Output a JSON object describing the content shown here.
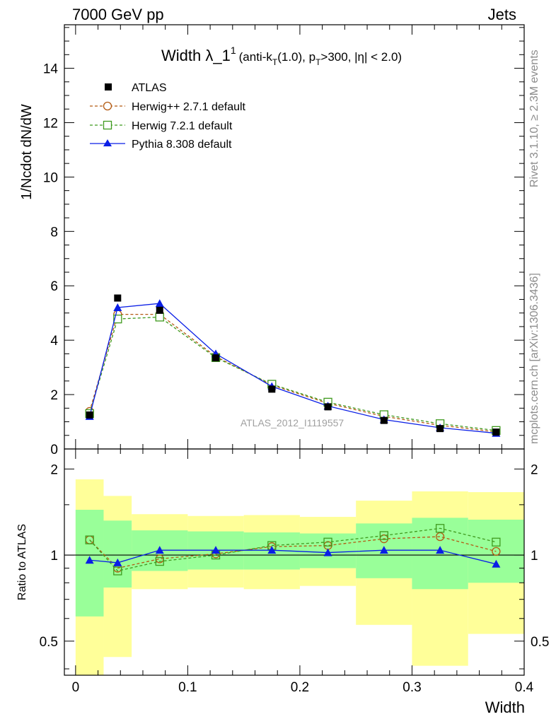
{
  "header": {
    "left": "7000 GeV pp",
    "right": "Jets"
  },
  "side_labels": {
    "rivet": "Rivet 3.1.10, ≥ 2.3M events",
    "mcplots": "mcplots.cern.ch [arXiv:1306.3436]"
  },
  "watermark": "ATLAS_2012_I1119557",
  "colors": {
    "atlas": "#000000",
    "herwigpp": "#b35a12",
    "herwig7": "#3f9a1e",
    "pythia": "#0a1ee6",
    "band_inner": "#99ff99",
    "band_outer": "#ffff99"
  },
  "chart_data": [
    {
      "type": "line",
      "title": "Width λ_1¹ (anti-k_T(1.0), p_T>300, |η| < 2.0)",
      "title_main": "Width λ_1",
      "title_sup": "1",
      "title_sub_text": "(anti-k",
      "title_sub_T": "T",
      "title_sub_rest1": "(1.0), p",
      "title_sub_T2": "T",
      "title_sub_rest2": ">300, |η| < 2.0)",
      "ylabel": "1/Ncdot dN/dW",
      "xlabel": "",
      "xlim": [
        -0.01,
        0.4
      ],
      "ylim": [
        0,
        15.6
      ],
      "yticks": [
        0,
        2,
        4,
        6,
        8,
        10,
        12,
        14
      ],
      "ytick_labels": [
        "0",
        "2",
        "4",
        "6",
        "8",
        "10",
        "12",
        "14"
      ],
      "legend_position": "top-left",
      "x": [
        0.0125,
        0.0375,
        0.075,
        0.125,
        0.175,
        0.225,
        0.275,
        0.325,
        0.375
      ],
      "series": [
        {
          "name": "ATLAS",
          "marker": "square-filled",
          "values": [
            1.25,
            5.55,
            5.1,
            3.35,
            2.2,
            1.55,
            1.05,
            0.75,
            0.62
          ]
        },
        {
          "name": "Herwig++ 2.7.1 default",
          "marker": "circle-open",
          "dashed": true,
          "values": [
            1.38,
            4.95,
            4.95,
            3.4,
            2.35,
            1.68,
            1.2,
            0.87,
            0.63
          ]
        },
        {
          "name": "Herwig 7.2.1 default",
          "marker": "square-open",
          "dashed": true,
          "values": [
            1.3,
            4.78,
            4.85,
            3.36,
            2.38,
            1.72,
            1.26,
            0.93,
            0.68
          ]
        },
        {
          "name": "Pythia 8.308 default",
          "marker": "triangle-filled",
          "values": [
            1.2,
            5.2,
            5.35,
            3.5,
            2.3,
            1.58,
            1.08,
            0.78,
            0.58
          ]
        }
      ]
    },
    {
      "type": "line",
      "ylabel": "Ratio to ATLAS",
      "xlabel": "Width",
      "xlim": [
        -0.01,
        0.4
      ],
      "ylim": [
        0.38,
        2.35
      ],
      "y_scale": "log",
      "yticks": [
        0.5,
        1,
        2
      ],
      "ytick_labels": [
        "0.5",
        "1",
        "2"
      ],
      "xticks": [
        0,
        0.1,
        0.2,
        0.3,
        0.4
      ],
      "xtick_labels": [
        "0",
        "0.1",
        "0.2",
        "0.3",
        "0.4"
      ],
      "bin_edges": [
        0,
        0.025,
        0.05,
        0.1,
        0.15,
        0.2,
        0.25,
        0.3,
        0.35,
        0.4
      ],
      "band_inner": {
        "lo": [
          0.61,
          0.77,
          0.88,
          0.89,
          0.89,
          0.9,
          0.83,
          0.76,
          0.8
        ],
        "hi": [
          1.44,
          1.32,
          1.22,
          1.21,
          1.2,
          1.19,
          1.29,
          1.35,
          1.33
        ]
      },
      "band_outer": {
        "lo": [
          0.38,
          0.44,
          0.76,
          0.77,
          0.76,
          0.78,
          0.57,
          0.41,
          0.53
        ],
        "hi": [
          1.84,
          1.61,
          1.39,
          1.37,
          1.38,
          1.36,
          1.55,
          1.67,
          1.66
        ]
      },
      "x": [
        0.0125,
        0.0375,
        0.075,
        0.125,
        0.175,
        0.225,
        0.275,
        0.325,
        0.375
      ],
      "series": [
        {
          "name": "Herwig++ 2.7.1 default",
          "values": [
            1.13,
            0.9,
            0.97,
            1.01,
            1.07,
            1.08,
            1.14,
            1.16,
            1.03
          ]
        },
        {
          "name": "Herwig 7.2.1 default",
          "values": [
            1.13,
            0.88,
            0.95,
            1.0,
            1.08,
            1.11,
            1.17,
            1.24,
            1.11
          ]
        },
        {
          "name": "Pythia 8.308 default",
          "values": [
            0.96,
            0.94,
            1.04,
            1.04,
            1.04,
            1.02,
            1.04,
            1.04,
            0.93
          ]
        }
      ]
    }
  ]
}
